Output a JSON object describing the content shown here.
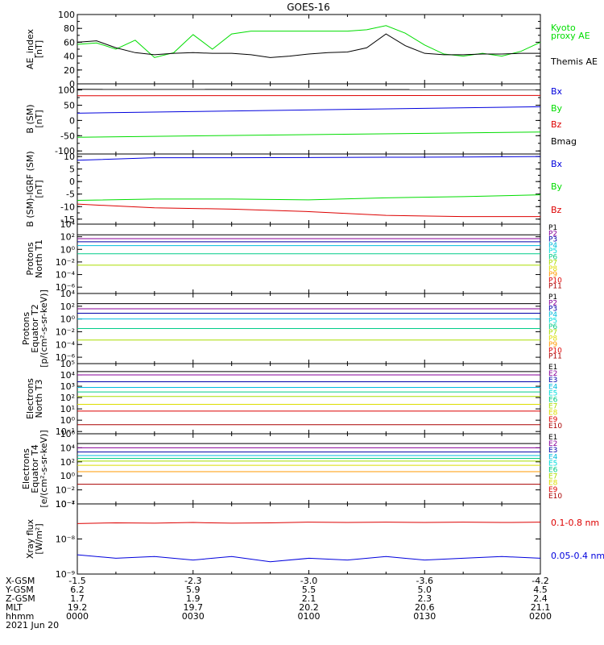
{
  "title": "GOES-16",
  "colors": {
    "black": "#000000",
    "green": "#00dd00",
    "blue": "#0000dd",
    "red": "#dd0000",
    "navy": "#0000aa",
    "purple": "#880099",
    "dkblue": "#0000aa",
    "cyan": "#00bbdd",
    "lightcyan": "#00dddd",
    "teal": "#00cc88",
    "yellowgreen": "#aadd00",
    "yellow": "#dddd00",
    "orange": "#ff9900",
    "darkred": "#aa0000",
    "magenta": "#cc00cc"
  },
  "chart_data": [
    {
      "type": "line",
      "name": "ae",
      "ylabel": "AE_index\n[nT]",
      "ylim": [
        0,
        100
      ],
      "yticks": [
        "0",
        "20",
        "40",
        "60",
        "80",
        "100"
      ],
      "ytick_values": [
        0,
        20,
        40,
        60,
        80,
        100
      ],
      "x": [
        0,
        5,
        10,
        15,
        20,
        25,
        30,
        35,
        40,
        45,
        50,
        55,
        60,
        65,
        70,
        75,
        80,
        85,
        90,
        95,
        100,
        105,
        110,
        115,
        120
      ],
      "series": [
        {
          "name": "Kyoto\nproxy AE",
          "color": "green",
          "values": [
            57,
            59,
            50,
            63,
            38,
            45,
            71,
            50,
            72,
            76,
            76,
            76,
            76,
            76,
            76,
            78,
            84,
            73,
            56,
            43,
            40,
            44,
            40,
            47,
            60
          ]
        },
        {
          "name": "Themis AE",
          "color": "black",
          "values": [
            60,
            62,
            52,
            45,
            42,
            44,
            45,
            44,
            44,
            42,
            38,
            40,
            43,
            45,
            46,
            52,
            72,
            55,
            44,
            42,
            42,
            43,
            43,
            44,
            44
          ]
        }
      ]
    },
    {
      "type": "line",
      "name": "bsm",
      "ylabel": "B (SM)\n[nT]",
      "ylim": [
        -110,
        120
      ],
      "yticks": [
        "-100",
        "-50",
        "0",
        "50",
        "100"
      ],
      "ytick_values": [
        -100,
        -50,
        0,
        50,
        100
      ],
      "x": [
        0,
        120
      ],
      "series": [
        {
          "name": "Bx",
          "color": "blue",
          "values": [
            24,
            45
          ]
        },
        {
          "name": "By",
          "color": "green",
          "values": [
            -55,
            -38
          ]
        },
        {
          "name": "Bz",
          "color": "red",
          "values": [
            81,
            82
          ]
        },
        {
          "name": "Bmag",
          "color": "black",
          "values": [
            102,
            101
          ]
        }
      ]
    },
    {
      "type": "line",
      "name": "bigrf",
      "ylabel": "B (SM)-IGRF (SM)\n[nT]",
      "ylim": [
        -17,
        11
      ],
      "yticks": [
        "-15",
        "-10",
        "-5",
        "0",
        "5",
        "10"
      ],
      "ytick_values": [
        -15,
        -10,
        -5,
        0,
        5,
        10
      ],
      "x": [
        0,
        20,
        40,
        60,
        80,
        100,
        120
      ],
      "series": [
        {
          "name": "Bx",
          "color": "blue",
          "values": [
            8.5,
            9.5,
            9.5,
            9.6,
            9.7,
            9.8,
            10
          ]
        },
        {
          "name": "By",
          "color": "green",
          "values": [
            -7.5,
            -7,
            -7,
            -7.3,
            -6.5,
            -6,
            -5.3
          ]
        },
        {
          "name": "Bz",
          "color": "red",
          "values": [
            -9,
            -10.5,
            -11,
            -12,
            -13.5,
            -14,
            -14
          ]
        }
      ]
    },
    {
      "type": "line",
      "name": "prot_t1",
      "ylabel": "Protons\nNorth T1",
      "log": true,
      "ylim": [
        -7,
        4
      ],
      "yticks": [
        "10⁻⁶",
        "10⁻⁴",
        "10⁻²",
        "10⁰",
        "10²",
        "10⁴"
      ],
      "ytick_values": [
        -6,
        -4,
        -2,
        0,
        2,
        4
      ],
      "legend": [
        "P1",
        "P2",
        "P3",
        "P4",
        "P5",
        "P6",
        "P7",
        "P8",
        "P9",
        "P10",
        "P11"
      ],
      "legend_colors": [
        "black",
        "purple",
        "dkblue",
        "cyan",
        "lightcyan",
        "teal",
        "yellowgreen",
        "yellow",
        "orange",
        "red",
        "darkred"
      ],
      "x": [
        0,
        120
      ],
      "series": [
        {
          "name": "P1",
          "color": "black",
          "values": [
            2.3,
            2.3
          ]
        },
        {
          "name": "P2",
          "color": "purple",
          "values": [
            1.7,
            1.7
          ]
        },
        {
          "name": "P3",
          "color": "dkblue",
          "values": [
            1.2,
            1.2
          ]
        },
        {
          "name": "P4",
          "color": "cyan",
          "values": [
            0.6,
            0.6
          ]
        },
        {
          "name": "P5",
          "color": "teal",
          "values": [
            -0.7,
            -0.7
          ]
        },
        {
          "name": "P6",
          "color": "yellowgreen",
          "values": [
            -2.5,
            -2.5
          ]
        }
      ]
    },
    {
      "type": "line",
      "name": "prot_t2",
      "ylabel": "Protons\nEquator T2\n[p/(cm²-s-sr-keV)]",
      "log": true,
      "ylim": [
        -7,
        4
      ],
      "yticks": [
        "10⁻⁶",
        "10⁻⁴",
        "10⁻²",
        "10⁰",
        "10²",
        "10⁴"
      ],
      "ytick_values": [
        -6,
        -4,
        -2,
        0,
        2,
        4
      ],
      "legend": [
        "P1",
        "P2",
        "P3",
        "P4",
        "P5",
        "P6",
        "P7",
        "P8",
        "P9",
        "P10",
        "P11"
      ],
      "legend_colors": [
        "black",
        "purple",
        "dkblue",
        "cyan",
        "lightcyan",
        "teal",
        "yellowgreen",
        "yellow",
        "orange",
        "red",
        "darkred"
      ],
      "x": [
        0,
        120
      ],
      "series": [
        {
          "name": "P1",
          "color": "black",
          "values": [
            2.4,
            2.4
          ]
        },
        {
          "name": "P2",
          "color": "purple",
          "values": [
            1.6,
            1.6
          ]
        },
        {
          "name": "P3",
          "color": "dkblue",
          "values": [
            0.9,
            0.9
          ]
        },
        {
          "name": "P4",
          "color": "cyan",
          "values": [
            0.0,
            0.0
          ]
        },
        {
          "name": "P5",
          "color": "teal",
          "values": [
            -1.5,
            -1.5
          ]
        },
        {
          "name": "P6",
          "color": "yellowgreen",
          "values": [
            -3.3,
            -3.3
          ]
        }
      ]
    },
    {
      "type": "line",
      "name": "elec_t3",
      "ylabel": "Electrons\nNorth T3",
      "log": true,
      "ylim": [
        -1.2,
        5
      ],
      "yticks": [
        "10⁻¹",
        "10⁰",
        "10¹",
        "10²",
        "10³",
        "10⁴",
        "10⁵"
      ],
      "ytick_values": [
        -1,
        0,
        1,
        2,
        3,
        4,
        5
      ],
      "legend": [
        "E1",
        "E2",
        "E3",
        "E4",
        "E5",
        "E6",
        "E7",
        "E8",
        "E9",
        "E10"
      ],
      "legend_colors": [
        "black",
        "purple",
        "dkblue",
        "cyan",
        "lightcyan",
        "teal",
        "yellowgreen",
        "yellow",
        "red",
        "darkred"
      ],
      "x": [
        0,
        120
      ],
      "series": [
        {
          "name": "E1",
          "color": "black",
          "values": [
            4.3,
            4.3
          ]
        },
        {
          "name": "E2",
          "color": "purple",
          "values": [
            4.0,
            4.0
          ]
        },
        {
          "name": "E3",
          "color": "dkblue",
          "values": [
            3.4,
            3.4
          ]
        },
        {
          "name": "E4",
          "color": "cyan",
          "values": [
            2.9,
            2.9
          ]
        },
        {
          "name": "E5",
          "color": "teal",
          "values": [
            2.5,
            2.5
          ]
        },
        {
          "name": "E6",
          "color": "yellowgreen",
          "values": [
            2.1,
            2.1
          ]
        },
        {
          "name": "E7",
          "color": "yellow",
          "values": [
            1.4,
            1.4
          ]
        },
        {
          "name": "E8",
          "color": "red",
          "values": [
            0.8,
            0.8
          ]
        },
        {
          "name": "E9",
          "color": "darkred",
          "values": [
            -0.4,
            -0.4
          ]
        }
      ]
    },
    {
      "type": "line",
      "name": "elec_t4",
      "ylabel": "Electrons\nEquator T4\n[e/(cm²-s-sr-keV)]",
      "log": true,
      "ylim": [
        -4,
        6
      ],
      "yticks": [
        "10⁻⁴",
        "10⁻²",
        "10⁰",
        "10²",
        "10⁴",
        "10⁶"
      ],
      "ytick_values": [
        -4,
        -2,
        0,
        2,
        4,
        6
      ],
      "legend": [
        "E1",
        "E2",
        "E3",
        "E4",
        "E5",
        "E6",
        "E7",
        "E8",
        "E9",
        "E10"
      ],
      "legend_colors": [
        "black",
        "purple",
        "dkblue",
        "cyan",
        "lightcyan",
        "teal",
        "yellowgreen",
        "yellow",
        "red",
        "darkred"
      ],
      "x": [
        0,
        120
      ],
      "series": [
        {
          "name": "E1",
          "color": "black",
          "values": [
            4.6,
            4.6
          ]
        },
        {
          "name": "E2",
          "color": "purple",
          "values": [
            4.0,
            4.0
          ]
        },
        {
          "name": "E3",
          "color": "dkblue",
          "values": [
            3.4,
            3.4
          ]
        },
        {
          "name": "E4",
          "color": "cyan",
          "values": [
            2.9,
            2.9
          ]
        },
        {
          "name": "E5",
          "color": "teal",
          "values": [
            2.5,
            2.5
          ]
        },
        {
          "name": "E6",
          "color": "yellowgreen",
          "values": [
            2.1,
            2.1
          ]
        },
        {
          "name": "E7",
          "color": "yellow",
          "values": [
            1.5,
            1.5
          ]
        },
        {
          "name": "E8",
          "color": "orange",
          "values": [
            0.6,
            0.6
          ]
        },
        {
          "name": "E9",
          "color": "darkred",
          "values": [
            -1.2,
            -1.2
          ]
        }
      ]
    },
    {
      "type": "line",
      "name": "xray",
      "ylabel": "Xray flux\n[W/m²]",
      "log": true,
      "ylim": [
        -9,
        -7
      ],
      "yticks": [
        "10⁻⁹",
        "10⁻⁸",
        "10⁻⁷"
      ],
      "ytick_values": [
        -9,
        -8,
        -7
      ],
      "x": [
        0,
        10,
        20,
        30,
        40,
        50,
        60,
        70,
        80,
        90,
        100,
        110,
        120
      ],
      "series": [
        {
          "name": "0.1-0.8 nm",
          "color": "red",
          "values": [
            -7.56,
            -7.54,
            -7.55,
            -7.53,
            -7.55,
            -7.54,
            -7.52,
            -7.53,
            -7.52,
            -7.53,
            -7.52,
            -7.53,
            -7.52
          ]
        },
        {
          "name": "0.05-0.4 nm",
          "color": "blue",
          "values": [
            -8.45,
            -8.55,
            -8.5,
            -8.6,
            -8.5,
            -8.65,
            -8.55,
            -8.6,
            -8.5,
            -8.6,
            -8.55,
            -8.5,
            -8.55
          ]
        }
      ]
    }
  ],
  "x_axis": {
    "row_labels": [
      "X-GSM",
      "Y-GSM",
      "Z-GSM",
      "MLT",
      "hhmm"
    ],
    "date": "2021 Jun 20",
    "ticks": [
      {
        "x": 0,
        "values": [
          "-1.5",
          "6.2",
          "1.7",
          "19.2",
          "0000"
        ]
      },
      {
        "x": 30,
        "values": [
          "-2.3",
          "5.9",
          "1.9",
          "19.7",
          "0030"
        ]
      },
      {
        "x": 60,
        "values": [
          "-3.0",
          "5.5",
          "2.1",
          "20.2",
          "0100"
        ]
      },
      {
        "x": 90,
        "values": [
          "-3.6",
          "5.0",
          "2.3",
          "20.6",
          "0130"
        ]
      },
      {
        "x": 120,
        "values": [
          "-4.2",
          "4.5",
          "2.4",
          "21.1",
          "0200"
        ]
      }
    ]
  }
}
